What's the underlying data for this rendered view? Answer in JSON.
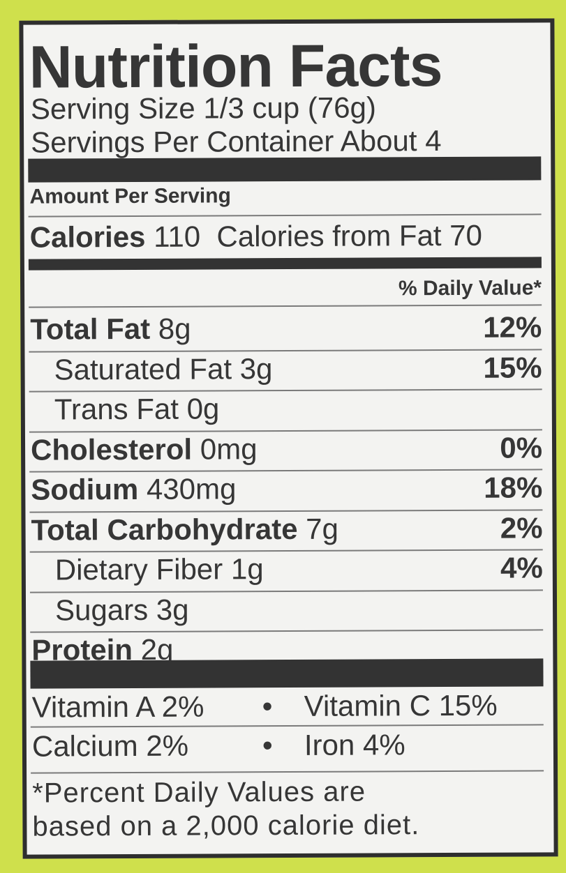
{
  "colors": {
    "background": "#cfe04c",
    "panel": "#f3f3f1",
    "ink": "#363636"
  },
  "title": "Nutrition Facts",
  "serving_size": "Serving Size 1/3 cup (76g)",
  "servings_per_container": "Servings Per Container About 4",
  "amount_per_serving": "Amount Per Serving",
  "calories": {
    "label": "Calories",
    "value": "110",
    "from_fat_label": "Calories from Fat",
    "from_fat_value": "70"
  },
  "daily_value_header": "% Daily Value*",
  "nutrients": [
    {
      "name": "Total Fat",
      "amount": "8g",
      "dv": "12%"
    },
    {
      "name": "Saturated Fat",
      "amount": "3g",
      "dv": "15%"
    },
    {
      "name": "Trans Fat",
      "amount": "0g",
      "dv": ""
    },
    {
      "name": "Cholesterol",
      "amount": "0mg",
      "dv": "0%"
    },
    {
      "name": "Sodium",
      "amount": "430mg",
      "dv": "18%"
    },
    {
      "name": "Total Carbohydrate",
      "amount": "7g",
      "dv": "2%"
    },
    {
      "name": "Dietary Fiber",
      "amount": "1g",
      "dv": "4%"
    },
    {
      "name": "Sugars",
      "amount": "3g",
      "dv": ""
    },
    {
      "name": "Protein",
      "amount": "2g",
      "dv": ""
    }
  ],
  "vitamins": [
    {
      "left": "Vitamin A 2%",
      "sep": "•",
      "right": "Vitamin C 15%"
    },
    {
      "left": "Calcium 2%",
      "sep": "•",
      "right": "Iron 4%"
    }
  ],
  "footnote": [
    "*Percent Daily Values are",
    "based on a 2,000 calorie diet."
  ]
}
